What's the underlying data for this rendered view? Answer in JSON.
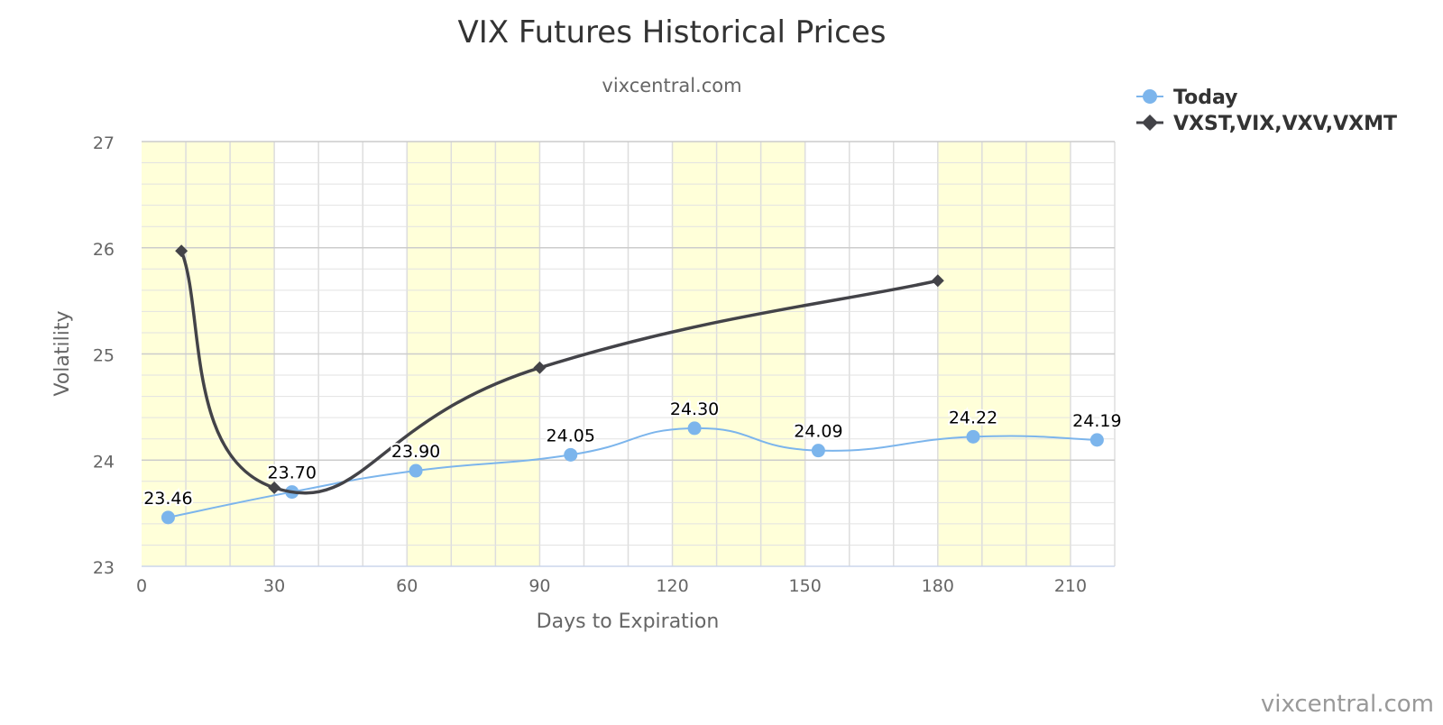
{
  "chart_data": {
    "type": "line",
    "title": "VIX Futures Historical Prices",
    "subtitle": "vixcentral.com",
    "xlabel": "Days to Expiration",
    "ylabel": "Volatility",
    "xlim": [
      0,
      220
    ],
    "ylim": [
      23,
      27
    ],
    "x_ticks": [
      "0",
      "30",
      "60",
      "90",
      "120",
      "150",
      "180",
      "210"
    ],
    "y_ticks": [
      "23",
      "24",
      "25",
      "26",
      "27"
    ],
    "grid": true,
    "legend_position": "top-right",
    "shaded_bands": [
      [
        0,
        30
      ],
      [
        60,
        90
      ],
      [
        120,
        150
      ],
      [
        180,
        210
      ]
    ],
    "band_color": "#ffffd9",
    "series": [
      {
        "name": "Today",
        "color": "#7cb5ec",
        "marker": "circle",
        "points": [
          {
            "x": 6,
            "y": 23.46,
            "label": "23.46"
          },
          {
            "x": 34,
            "y": 23.7,
            "label": "23.70"
          },
          {
            "x": 62,
            "y": 23.9,
            "label": "23.90"
          },
          {
            "x": 97,
            "y": 24.05,
            "label": "24.05"
          },
          {
            "x": 125,
            "y": 24.3,
            "label": "24.30"
          },
          {
            "x": 153,
            "y": 24.09,
            "label": "24.09"
          },
          {
            "x": 188,
            "y": 24.22,
            "label": "24.22"
          },
          {
            "x": 216,
            "y": 24.19,
            "label": "24.19"
          }
        ]
      },
      {
        "name": "VXST,VIX,VXV,VXMT",
        "color": "#434348",
        "marker": "diamond",
        "points": [
          {
            "x": 9,
            "y": 25.97
          },
          {
            "x": 30,
            "y": 23.74
          },
          {
            "x": 90,
            "y": 24.87
          },
          {
            "x": 180,
            "y": 25.69
          }
        ]
      }
    ]
  },
  "credit": "vixcentral.com"
}
